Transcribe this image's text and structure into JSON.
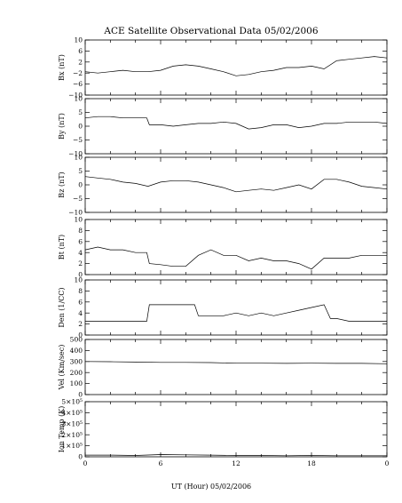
{
  "chart_data": {
    "type": "line",
    "title": "ACE Satellite Observational Data   05/02/2006",
    "xlabel": "UT (Hour)   05/02/2006",
    "x_ticks": [
      "0",
      "6",
      "12",
      "18",
      "0"
    ],
    "xlim": [
      0,
      24
    ],
    "panels": [
      {
        "name": "bx",
        "ylabel": "Bx (nT)",
        "ylim": [
          -10,
          10
        ],
        "yticks": [
          10,
          6,
          2,
          -2,
          -6,
          -10
        ],
        "ytick_labels": [
          "10",
          "6",
          "2",
          "−2",
          "−6",
          "−10"
        ],
        "x": [
          0,
          1,
          2,
          3,
          4,
          5,
          6,
          7,
          8,
          9,
          10,
          11,
          12,
          13,
          14,
          15,
          16,
          17,
          18,
          19,
          20,
          21,
          22,
          23,
          24
        ],
        "values": [
          -1.5,
          -2,
          -1.5,
          -1,
          -1.5,
          -1.5,
          -1,
          0.5,
          1,
          0.5,
          -0.5,
          -1.5,
          -3,
          -2.5,
          -1.5,
          -1,
          0,
          0,
          0.5,
          -0.5,
          2.5,
          3,
          3.5,
          4,
          3.5
        ]
      },
      {
        "name": "by",
        "ylabel": "By (nT)",
        "ylim": [
          -10,
          10
        ],
        "yticks": [
          10,
          5,
          0,
          -5,
          -10
        ],
        "ytick_labels": [
          "10",
          "5",
          "0",
          "−5",
          "−10"
        ],
        "x": [
          0,
          1,
          2,
          3,
          4,
          4.9,
          5.1,
          6,
          7,
          8,
          9,
          10,
          11,
          12,
          13,
          14,
          15,
          16,
          17,
          18,
          19,
          20,
          21,
          22,
          23,
          24
        ],
        "values": [
          3,
          3.5,
          3.5,
          3,
          3,
          3,
          0.5,
          0.5,
          0,
          0.5,
          1,
          1,
          1.5,
          1,
          -1,
          -0.5,
          0.5,
          0.5,
          -0.5,
          0,
          1,
          1,
          1.5,
          1.5,
          1.5,
          1
        ]
      },
      {
        "name": "bz",
        "ylabel": "Bz (nT)",
        "ylim": [
          -10,
          10
        ],
        "yticks": [
          10,
          5,
          0,
          -5,
          -10
        ],
        "ytick_labels": [
          "10",
          "5",
          "0",
          "−5",
          "−10"
        ],
        "x": [
          0,
          1,
          2,
          3,
          4,
          5,
          6,
          7,
          8,
          9,
          10,
          11,
          12,
          13,
          14,
          15,
          16,
          17,
          18,
          19,
          20,
          21,
          22,
          23,
          24
        ],
        "values": [
          3,
          2.5,
          2,
          1,
          0.5,
          -0.5,
          1,
          1.5,
          1.5,
          1,
          0,
          -1,
          -2.5,
          -2,
          -1.5,
          -2,
          -1,
          0,
          -1.5,
          2,
          2,
          1,
          -0.5,
          -1,
          -1.5
        ]
      },
      {
        "name": "bt",
        "ylabel": "Bt (nT)",
        "ylim": [
          0,
          10
        ],
        "yticks": [
          10,
          8,
          6,
          4,
          2,
          0
        ],
        "ytick_labels": [
          "10",
          "8",
          "6",
          "4",
          "2",
          "0"
        ],
        "x": [
          0,
          1,
          2,
          3,
          4,
          4.9,
          5.1,
          6,
          7,
          8,
          9,
          10,
          11,
          12,
          13,
          14,
          15,
          16,
          17,
          18,
          19,
          20,
          21,
          22,
          23,
          24
        ],
        "values": [
          4.5,
          5,
          4.5,
          4.5,
          4,
          4,
          2,
          1.8,
          1.5,
          1.5,
          3.5,
          4.5,
          3.5,
          3.5,
          2.5,
          3,
          2.5,
          2.5,
          2,
          1,
          3,
          3,
          3,
          3.5,
          3.5,
          3.5
        ]
      },
      {
        "name": "den",
        "ylabel": "Den (1/CC)",
        "ylim": [
          0,
          10
        ],
        "yticks": [
          10,
          8,
          6,
          4,
          2,
          0
        ],
        "ytick_labels": [
          "10",
          "8",
          "6",
          "4",
          "2",
          "0"
        ],
        "x": [
          0,
          1,
          2,
          3,
          4,
          4.9,
          5.1,
          6,
          7,
          8,
          8.7,
          9,
          10,
          11,
          12,
          13,
          14,
          15,
          16,
          17,
          18,
          19,
          19.5,
          20,
          21,
          22,
          23,
          24
        ],
        "values": [
          2.5,
          2.5,
          2.5,
          2.5,
          2.5,
          2.5,
          5.5,
          5.5,
          5.5,
          5.5,
          5.5,
          3.5,
          3.5,
          3.5,
          4,
          3.5,
          4,
          3.5,
          4,
          4.5,
          5,
          5.5,
          3,
          3,
          2.5,
          2.5,
          2.5,
          2.5
        ]
      },
      {
        "name": "vel",
        "ylabel": "Vel (Km/sec)",
        "ylim": [
          0,
          500
        ],
        "yticks": [
          500,
          400,
          300,
          200,
          100,
          0
        ],
        "ytick_labels": [
          "500",
          "400",
          "300",
          "200",
          "100",
          "0"
        ],
        "x": [
          0,
          2,
          4,
          6,
          8,
          10,
          12,
          14,
          16,
          18,
          20,
          22,
          24
        ],
        "values": [
          300,
          298,
          295,
          292,
          292,
          290,
          285,
          285,
          283,
          285,
          283,
          283,
          280
        ]
      },
      {
        "name": "temp",
        "ylabel": "Ion Temp (K)",
        "ylim": [
          0,
          500000
        ],
        "yticks": [
          500000,
          400000,
          300000,
          200000,
          100000,
          0
        ],
        "ytick_labels": [
          "5×10⁵",
          "4×10⁵",
          "3×10⁵",
          "2×10⁵",
          "1×10⁵",
          "0"
        ],
        "x": [
          0,
          2,
          4,
          6,
          8,
          10,
          12,
          14,
          16,
          18,
          20,
          22,
          24
        ],
        "values": [
          15000,
          15000,
          12000,
          20000,
          18000,
          15000,
          12000,
          12000,
          10000,
          12000,
          10000,
          10000,
          10000
        ]
      }
    ]
  }
}
